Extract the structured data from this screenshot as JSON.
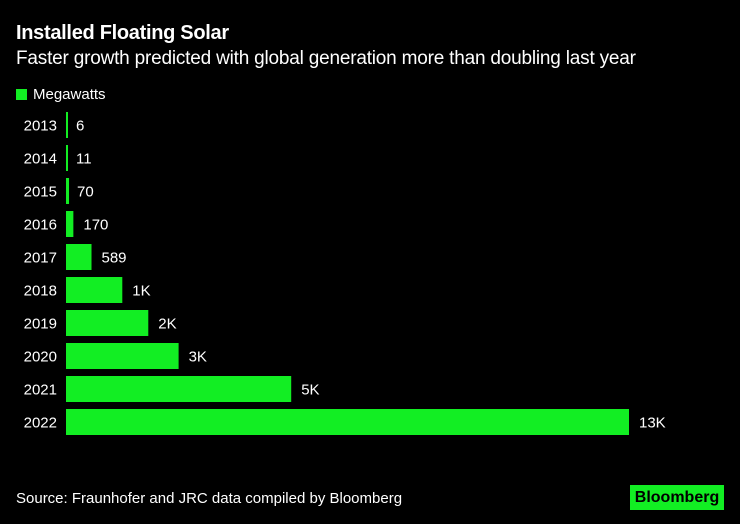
{
  "colors": {
    "bar": "#12ee23",
    "background": "#000000",
    "text": "#ffffff"
  },
  "chart_data": {
    "type": "bar",
    "orientation": "horizontal",
    "title": "Installed Floating Solar",
    "subtitle": "Faster growth predicted with global generation more than doubling last year",
    "categories": [
      "2013",
      "2014",
      "2015",
      "2016",
      "2017",
      "2018",
      "2019",
      "2020",
      "2021",
      "2022"
    ],
    "series": [
      {
        "name": "Megawatts",
        "values": [
          6,
          11,
          70,
          170,
          589,
          1300,
          1900,
          2600,
          5200,
          13000
        ],
        "data_labels": [
          "6",
          "11",
          "70",
          "170",
          "589",
          "1K",
          "2K",
          "3K",
          "5K",
          "13K"
        ]
      }
    ],
    "xlim": [
      0,
      13000
    ],
    "grid": false,
    "legend": "top-left",
    "source": "Source: Fraunhofer and JRC data compiled by Bloomberg"
  },
  "logo": "Bloomberg"
}
